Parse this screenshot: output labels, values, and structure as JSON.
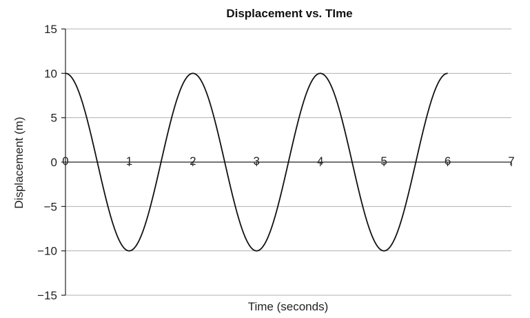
{
  "chart_data": {
    "type": "line",
    "title": "Displacement vs. TIme",
    "xlabel": "Time (seconds)",
    "ylabel": "Displacement (m)",
    "xlim": [
      0,
      7
    ],
    "ylim": [
      -15,
      15
    ],
    "x_ticks": [
      0,
      1,
      2,
      3,
      4,
      5,
      6,
      7
    ],
    "y_ticks": [
      15,
      10,
      5,
      0,
      -5,
      -10,
      -15
    ],
    "x_tick_labels": [
      "0",
      "1",
      "2",
      "3",
      "4",
      "5",
      "6",
      "7"
    ],
    "y_tick_labels": [
      "15",
      "10",
      "5",
      "0",
      "−5",
      "−10",
      "−15"
    ],
    "grid": "horizontal",
    "series": [
      {
        "name": "Displacement",
        "function": "10*cos(pi*t)",
        "x": [
          0,
          0.5,
          1,
          1.5,
          2,
          2.5,
          3,
          3.5,
          4,
          4.5,
          5,
          5.5,
          6
        ],
        "values": [
          10,
          0,
          -10,
          0,
          10,
          0,
          -10,
          0,
          10,
          0,
          -10,
          0,
          10
        ]
      }
    ]
  }
}
